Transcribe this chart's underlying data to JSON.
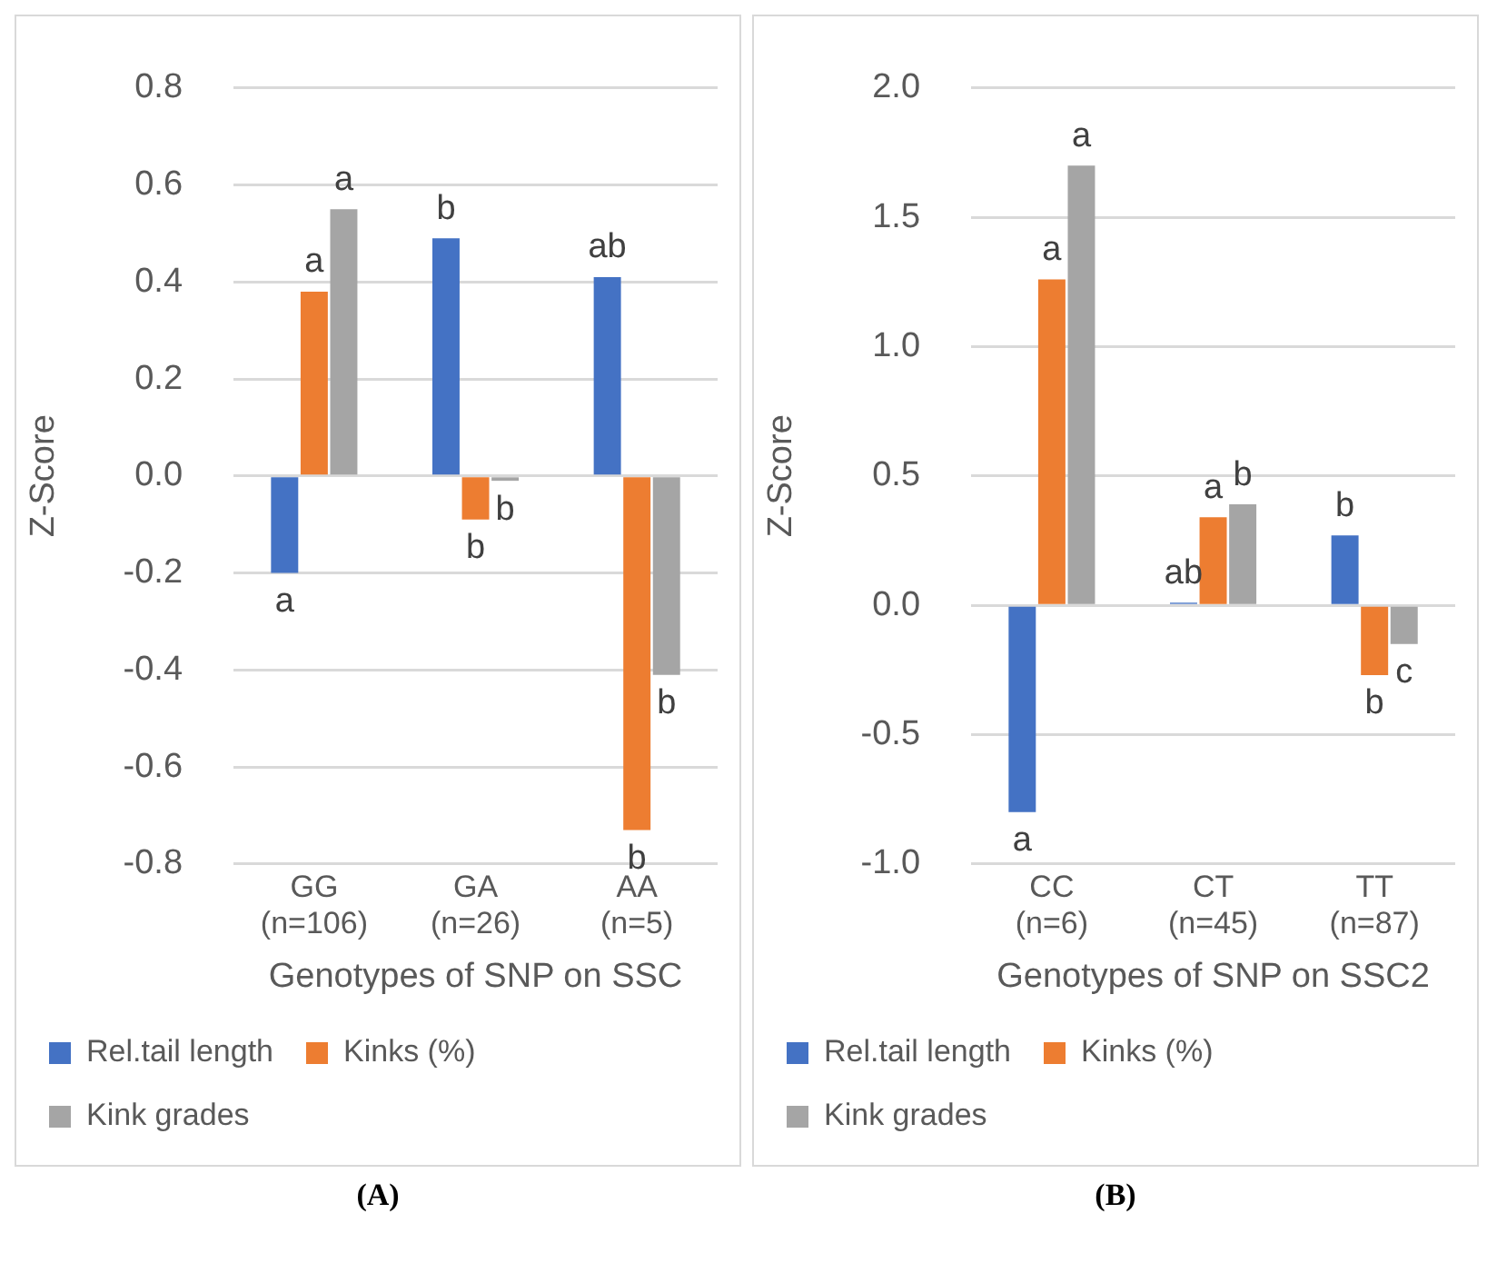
{
  "chart_data": [
    {
      "type": "bar",
      "categories": [
        "GG (n=106)",
        "GA (n=26)",
        "AA (n=5)"
      ],
      "xlabel": "Genotypes of SNP on SSC",
      "ylabel": "Z-Score",
      "series": [
        {
          "name": "Rel.tail length",
          "color": "#4472c4",
          "values": [
            -0.2,
            0.49,
            0.41
          ]
        },
        {
          "name": "Kinks (%)",
          "color": "#ed7d31",
          "values": [
            0.38,
            -0.09,
            -0.73
          ]
        },
        {
          "name": "Kink grades",
          "color": "#a5a5a5",
          "values": [
            0.55,
            -0.01,
            -0.41
          ]
        }
      ],
      "ylim": [
        -0.8,
        0.8
      ],
      "yticks": [
        -0.8,
        -0.6,
        -0.4,
        -0.2,
        {
          "value": 0,
          "label": "0.0"
        },
        0.2,
        0.4,
        0.6,
        0.8
      ],
      "grid": "y",
      "legend": "bottom",
      "annotations": [
        "a",
        "a",
        "a",
        "b",
        "b",
        "b",
        "ab",
        "b",
        "b",
        "(A)"
      ]
    },
    {
      "type": "bar",
      "categories": [
        "CC (n=6)",
        "CT (n=45)",
        "TT (n=87)"
      ],
      "xlabel": "Genotypes of SNP on SSC2",
      "ylabel": "Z-Score",
      "series": [
        {
          "name": "Rel.tail length",
          "color": "#4472c4",
          "values": [
            -0.8,
            0.01,
            0.27
          ]
        },
        {
          "name": "Kinks (%)",
          "color": "#ed7d31",
          "values": [
            1.26,
            0.34,
            -0.27
          ]
        },
        {
          "name": "Kink grades",
          "color": "#a5a5a5",
          "values": [
            1.7,
            0.39,
            -0.15
          ]
        }
      ],
      "ylim": [
        -1.0,
        2.0
      ],
      "yticks": [
        {
          "value": -1,
          "label": "-1.0"
        },
        -0.5,
        {
          "value": 0,
          "label": "0.0"
        },
        0.5,
        {
          "value": 1,
          "label": "1.0"
        },
        1.5,
        {
          "value": 2,
          "label": "2.0"
        }
      ],
      "grid": "y",
      "legend": "bottom",
      "annotations": [
        "a",
        "a",
        "a",
        "ab",
        "a",
        "b",
        "b",
        "b",
        "c",
        "(B)"
      ]
    }
  ]
}
